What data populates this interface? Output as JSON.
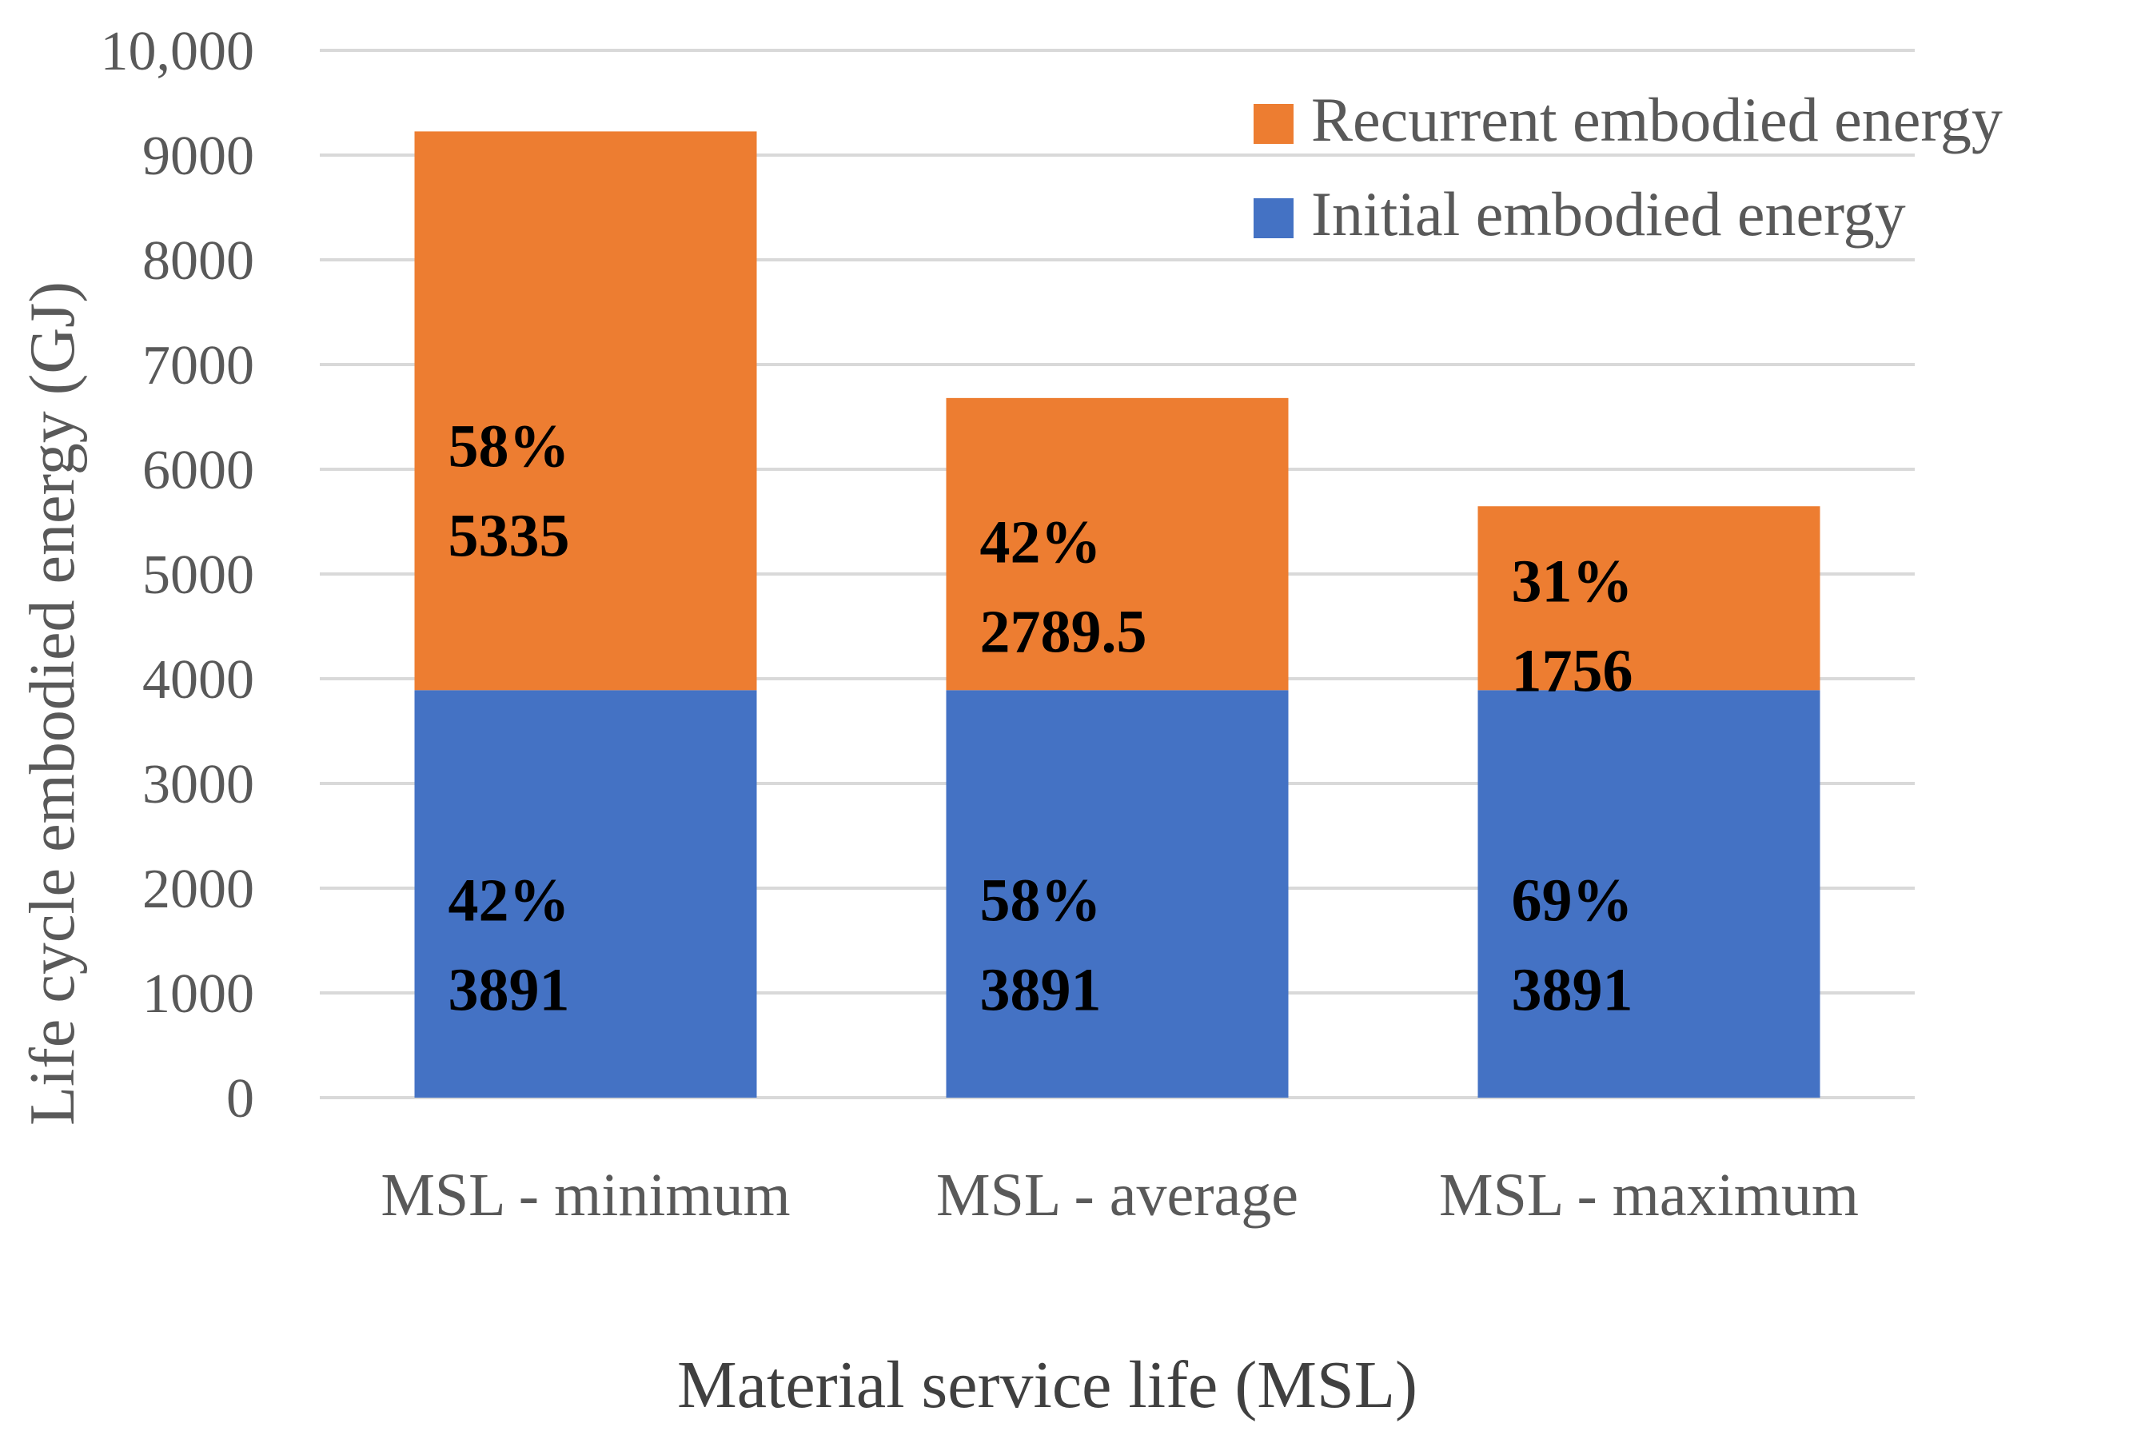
{
  "chart_data": {
    "type": "bar",
    "stacked": true,
    "title": "",
    "xlabel": "Material service life (MSL)",
    "ylabel": "Life cycle embodied energy (GJ)",
    "ylim": [
      0,
      10000
    ],
    "yticks": [
      0,
      1000,
      2000,
      3000,
      4000,
      5000,
      6000,
      7000,
      8000,
      9000,
      10000
    ],
    "ytick_labels": [
      "0",
      "1000",
      "2000",
      "3000",
      "4000",
      "5000",
      "6000",
      "7000",
      "8000",
      "9000",
      "10,000"
    ],
    "grid": true,
    "legend_position": "top-right",
    "categories": [
      "MSL - minimum",
      "MSL - average",
      "MSL - maximum"
    ],
    "series": [
      {
        "name": "Initial embodied energy",
        "color": "#4472c4",
        "values": [
          3891,
          3891,
          3891
        ],
        "value_labels": [
          "3891",
          "3891",
          "3891"
        ],
        "percent_labels": [
          "42%",
          "58%",
          "69%"
        ]
      },
      {
        "name": "Recurrent embodied energy",
        "color": "#ed7d31",
        "values": [
          5335,
          2789.5,
          1756
        ],
        "value_labels": [
          "5335",
          "2789.5",
          "1756"
        ],
        "percent_labels": [
          "58%",
          "42%",
          "31%"
        ]
      }
    ],
    "legend_order": [
      1,
      0
    ]
  }
}
